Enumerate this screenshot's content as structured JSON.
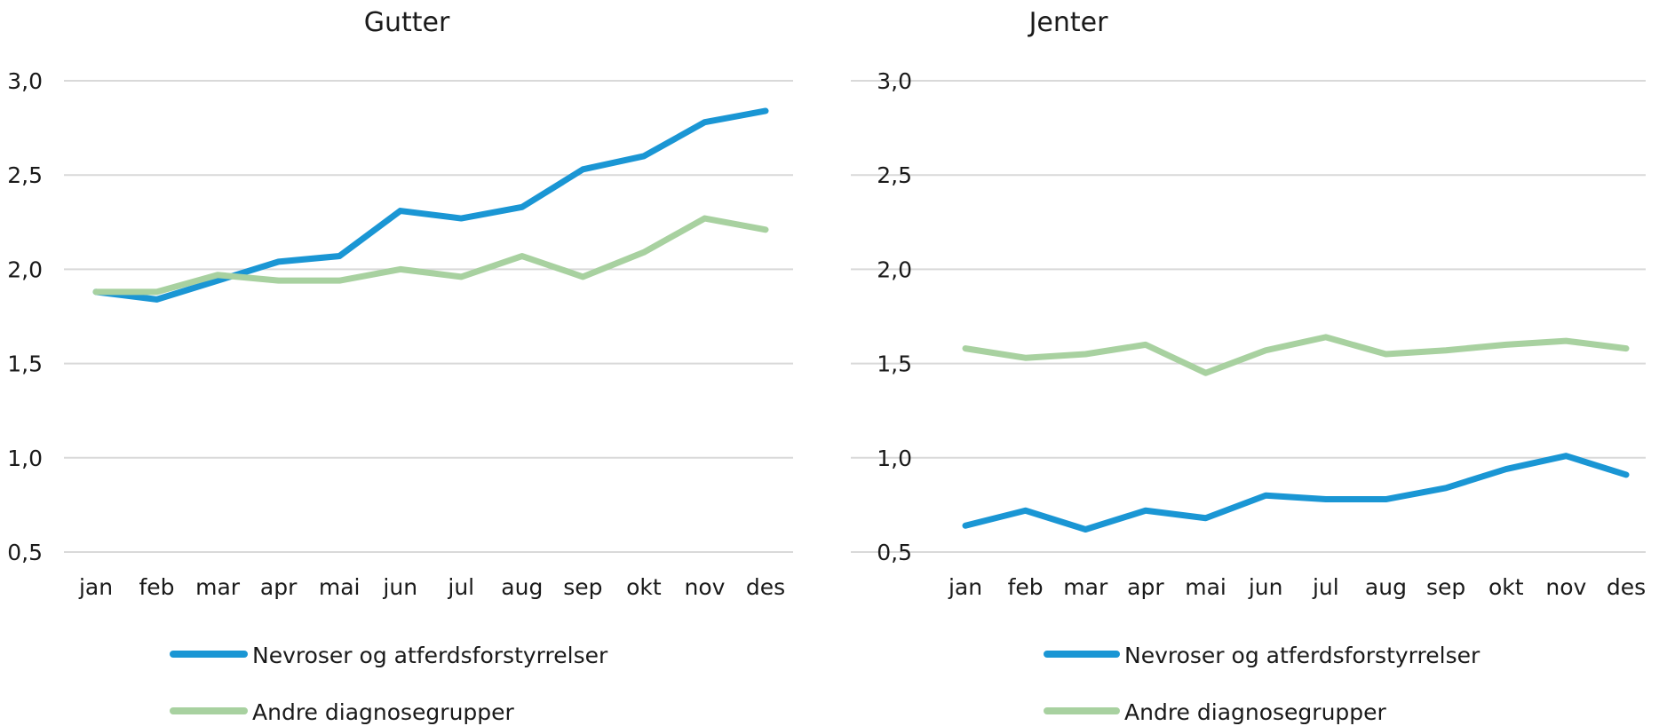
{
  "colors": {
    "series1": "#1a96d4",
    "series2": "#a8d1a0",
    "grid": "#d9d9d9"
  },
  "chart_data": [
    {
      "type": "line",
      "title": "Gutter",
      "categories": [
        "jan",
        "feb",
        "mar",
        "apr",
        "mai",
        "jun",
        "jul",
        "aug",
        "sep",
        "okt",
        "nov",
        "des"
      ],
      "ylim": [
        0.5,
        3.0
      ],
      "yticks": [
        "0,5",
        "1,0",
        "1,5",
        "2,0",
        "2,5",
        "3,0"
      ],
      "ytick_values": [
        0.5,
        1.0,
        1.5,
        2.0,
        2.5,
        3.0
      ],
      "grid": true,
      "legend_position": "bottom",
      "series": [
        {
          "name": "Nevroser og atferdsforstyrrelser",
          "values": [
            1.88,
            1.84,
            1.94,
            2.04,
            2.07,
            2.31,
            2.27,
            2.33,
            2.53,
            2.6,
            2.78,
            2.84
          ]
        },
        {
          "name": "Andre diagnosegrupper",
          "values": [
            1.88,
            1.88,
            1.97,
            1.94,
            1.94,
            2.0,
            1.96,
            2.07,
            1.96,
            2.09,
            2.27,
            2.21
          ]
        }
      ]
    },
    {
      "type": "line",
      "title": "Jenter",
      "categories": [
        "jan",
        "feb",
        "mar",
        "apr",
        "mai",
        "jun",
        "jul",
        "aug",
        "sep",
        "okt",
        "nov",
        "des"
      ],
      "ylim": [
        0.5,
        3.0
      ],
      "yticks": [
        "0,5",
        "1,0",
        "1,5",
        "2,0",
        "2,5",
        "3,0"
      ],
      "ytick_values": [
        0.5,
        1.0,
        1.5,
        2.0,
        2.5,
        3.0
      ],
      "grid": true,
      "legend_position": "bottom",
      "series": [
        {
          "name": "Nevroser og atferdsforstyrrelser",
          "values": [
            0.64,
            0.72,
            0.62,
            0.72,
            0.68,
            0.8,
            0.78,
            0.78,
            0.84,
            0.94,
            1.01,
            0.91
          ]
        },
        {
          "name": "Andre diagnosegrupper",
          "values": [
            1.58,
            1.53,
            1.55,
            1.6,
            1.45,
            1.57,
            1.64,
            1.55,
            1.57,
            1.6,
            1.62,
            1.58
          ]
        }
      ]
    }
  ]
}
